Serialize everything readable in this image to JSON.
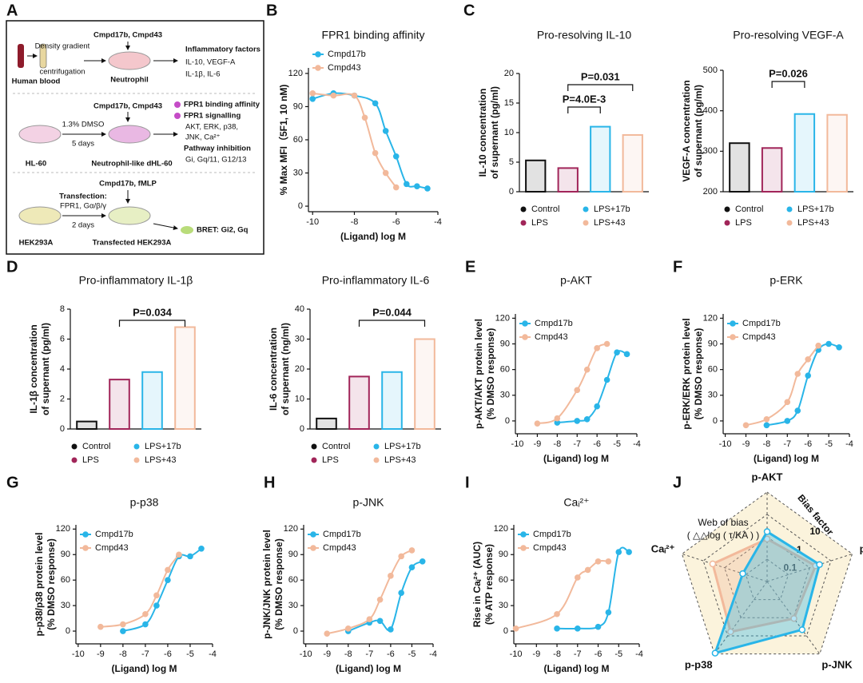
{
  "diagram": {
    "panel": "A",
    "labels": [
      "Cmpd17b, Cmpd43",
      "Density gradient",
      "centrifugation",
      "Human blood",
      "Neutrophil",
      "Inflammatory factors",
      "IL-10, VEGF-A",
      "IL-1β, IL-6",
      "Cmpd17b, Cmpd43",
      "1.3% DMSO",
      "5 days",
      "FPR1 binding affinity",
      "FPR1 signalling",
      "AKT, ERK, p38,",
      "JNK, Ca²⁺",
      "Pathway inhibition",
      "Gi, Gq/11, G12/13",
      "HL-60",
      "Neutrophil-like dHL-60",
      "Cmpd17b, fMLP",
      "Transfection:",
      "FPR1, Gα/β/γ",
      "2 days",
      "BRET: Gi2, Gq",
      "HEK293A",
      "Transfected HEK293A"
    ]
  },
  "chart_data": [
    {
      "type": "line",
      "panel": "B",
      "title": "FPR1 binding affinity",
      "xlabel": "(Ligand) log M",
      "ylabel": [
        "% Max MFI（5F1, 10 nM)"
      ],
      "xlim": [
        -10.2,
        -4
      ],
      "xticks": [
        -10,
        -8,
        -6,
        -4
      ],
      "ylim": [
        -5,
        125
      ],
      "yticks": [
        0,
        30,
        60,
        90,
        120
      ],
      "legend": "top",
      "series": [
        {
          "name": "Cmpd17b",
          "color": "#29b5e8",
          "x": [
            -10,
            -9,
            -8,
            -7,
            -6.5,
            -6,
            -5.5,
            -5,
            -4.5
          ],
          "values": [
            97,
            102,
            100,
            93,
            68,
            45,
            20,
            18,
            16
          ]
        },
        {
          "name": "Cmpd43",
          "color": "#f2b99b",
          "x": [
            -10,
            -9,
            -8,
            -7.5,
            -7,
            -6.5,
            -6
          ],
          "values": [
            102,
            100,
            100,
            80,
            48,
            30,
            17
          ]
        }
      ]
    },
    {
      "type": "bar",
      "panel": "C",
      "title": "Pro-resolving IL-10",
      "ylabel": [
        "IL-10 concentration",
        "of supernant (pg/ml)"
      ],
      "categories": [
        "Control",
        "LPS",
        "LPS+17b",
        "LPS+43"
      ],
      "colors": [
        "#111111",
        "#a12559",
        "#29b5e8",
        "#f2b99b"
      ],
      "values": [
        5.3,
        4.0,
        11.0,
        9.6
      ],
      "ylim": [
        0,
        20
      ],
      "yticks": [
        0,
        5,
        10,
        15,
        20
      ],
      "annotations": [
        {
          "text": "P=4.0E-3",
          "between": [
            "LPS",
            "LPS+17b"
          ]
        },
        {
          "text": "P=0.031",
          "between": [
            "LPS",
            "LPS+43"
          ]
        }
      ]
    },
    {
      "type": "bar",
      "title": "Pro-resolving VEGF-A",
      "ylabel": [
        "VEGF-A concentration",
        "of supernant (pg/ml)"
      ],
      "categories": [
        "Control",
        "LPS",
        "LPS+17b",
        "LPS+43"
      ],
      "colors": [
        "#111111",
        "#a12559",
        "#29b5e8",
        "#f2b99b"
      ],
      "values": [
        320,
        308,
        392,
        390
      ],
      "ylim": [
        200,
        500
      ],
      "yticks": [
        200,
        300,
        400,
        500
      ],
      "annotations": [
        {
          "text": "P=0.026",
          "between": [
            "LPS",
            "LPS+17b"
          ]
        }
      ]
    },
    {
      "type": "bar",
      "panel": "D",
      "title": "Pro-inflammatory IL-1β",
      "ylabel": [
        "IL-1β concentration",
        "of supernant (pg/ml)"
      ],
      "categories": [
        "Control",
        "LPS",
        "LPS+17b",
        "LPS+43"
      ],
      "colors": [
        "#111111",
        "#a12559",
        "#29b5e8",
        "#f2b99b"
      ],
      "values": [
        0.5,
        3.3,
        3.8,
        6.8
      ],
      "ylim": [
        0,
        8
      ],
      "yticks": [
        0,
        2,
        4,
        6,
        8
      ],
      "annotations": [
        {
          "text": "P=0.034",
          "between": [
            "LPS",
            "LPS+43"
          ]
        }
      ]
    },
    {
      "type": "bar",
      "title": "Pro-inflammatory IL-6",
      "ylabel": [
        "IL-6 concentration",
        "of supernant (ng/ml)"
      ],
      "categories": [
        "Control",
        "LPS",
        "LPS+17b",
        "LPS+43"
      ],
      "colors": [
        "#111111",
        "#a12559",
        "#29b5e8",
        "#f2b99b"
      ],
      "values": [
        3.5,
        17.5,
        19,
        30
      ],
      "ylim": [
        0,
        40
      ],
      "yticks": [
        0,
        10,
        20,
        30,
        40
      ],
      "annotations": [
        {
          "text": "P=0.044",
          "between": [
            "LPS",
            "LPS+43"
          ]
        }
      ]
    },
    {
      "type": "line",
      "panel": "E",
      "title": "p-AKT",
      "xlabel": "(Ligand) log M",
      "ylabel": [
        "p-AKT/AKT protein level",
        "(% DMSO response)"
      ],
      "xlim": [
        -10.1,
        -4
      ],
      "xticks": [
        -10,
        -9,
        -8,
        -7,
        -6,
        -5,
        -4
      ],
      "ylim": [
        -15,
        125
      ],
      "yticks": [
        0,
        30,
        60,
        90,
        120
      ],
      "legend": "upper left",
      "series": [
        {
          "name": "Cmpd17b",
          "color": "#29b5e8",
          "x": [
            -8,
            -7,
            -6.5,
            -6,
            -5.5,
            -5,
            -4.5
          ],
          "values": [
            -2,
            0,
            2,
            17,
            48,
            80,
            78
          ]
        },
        {
          "name": "Cmpd43",
          "color": "#f2b99b",
          "x": [
            -9,
            -8,
            -7,
            -6.5,
            -6,
            -5.5
          ],
          "values": [
            -3,
            3,
            36,
            60,
            85,
            90
          ]
        }
      ]
    },
    {
      "type": "line",
      "panel": "F",
      "title": "p-ERK",
      "xlabel": "(Ligand) log M",
      "ylabel": [
        "p-ERK/ERK protein level",
        "(% DMSO response)"
      ],
      "xlim": [
        -10.1,
        -4
      ],
      "xticks": [
        -10,
        -9,
        -8,
        -7,
        -6,
        -5,
        -4
      ],
      "ylim": [
        -15,
        125
      ],
      "yticks": [
        0,
        30,
        60,
        90,
        120
      ],
      "legend": "upper left",
      "series": [
        {
          "name": "Cmpd17b",
          "color": "#29b5e8",
          "x": [
            -8,
            -7,
            -6.5,
            -6,
            -5.5,
            -5,
            -4.5
          ],
          "values": [
            -5,
            0,
            12,
            53,
            83,
            90,
            86
          ]
        },
        {
          "name": "Cmpd43",
          "color": "#f2b99b",
          "x": [
            -9,
            -8,
            -7,
            -6.5,
            -6,
            -5.5
          ],
          "values": [
            -5,
            2,
            22,
            55,
            72,
            88
          ]
        }
      ]
    },
    {
      "type": "line",
      "panel": "G",
      "title": "p-p38",
      "xlabel": "(Ligand) log M",
      "ylabel": [
        "p-p38/p38 protein level",
        "(% DMSO response)"
      ],
      "xlim": [
        -10.1,
        -4
      ],
      "xticks": [
        -10,
        -9,
        -8,
        -7,
        -6,
        -5,
        -4
      ],
      "ylim": [
        -15,
        125
      ],
      "yticks": [
        0,
        30,
        60,
        90,
        120
      ],
      "legend": "upper left",
      "series": [
        {
          "name": "Cmpd17b",
          "color": "#29b5e8",
          "x": [
            -8,
            -7,
            -6.5,
            -6,
            -5.5,
            -5,
            -4.5
          ],
          "values": [
            0,
            8,
            30,
            60,
            88,
            88,
            97
          ]
        },
        {
          "name": "Cmpd43",
          "color": "#f2b99b",
          "x": [
            -9,
            -8,
            -7,
            -6.5,
            -6,
            -5.5
          ],
          "values": [
            5,
            8,
            20,
            42,
            72,
            90
          ]
        }
      ]
    },
    {
      "type": "line",
      "panel": "H",
      "title": "p-JNK",
      "xlabel": "(Ligand) log M",
      "ylabel": [
        "p-JNK/JNK protein level",
        "(% DMSO response)"
      ],
      "xlim": [
        -10.1,
        -4
      ],
      "xticks": [
        -10,
        -9,
        -8,
        -7,
        -6,
        -5,
        -4
      ],
      "ylim": [
        -15,
        125
      ],
      "yticks": [
        0,
        30,
        60,
        90,
        120
      ],
      "legend": "upper left",
      "series": [
        {
          "name": "Cmpd17b",
          "color": "#29b5e8",
          "x": [
            -8,
            -7,
            -6.5,
            -6,
            -5.5,
            -5,
            -4.5
          ],
          "values": [
            0,
            10,
            12,
            2,
            45,
            75,
            82
          ]
        },
        {
          "name": "Cmpd43",
          "color": "#f2b99b",
          "x": [
            -9,
            -8,
            -7,
            -6.5,
            -6,
            -5.5,
            -5
          ],
          "values": [
            -3,
            3,
            14,
            37,
            65,
            88,
            95
          ]
        }
      ]
    },
    {
      "type": "line",
      "panel": "I",
      "title": "Caᵢ²⁺",
      "xlabel": "(Ligand) log M",
      "ylabel": [
        "Rise in Caᵢ²⁺ (AUC)",
        "(% ATP response)"
      ],
      "xlim": [
        -10.1,
        -4
      ],
      "xticks": [
        -10,
        -9,
        -8,
        -7,
        -6,
        -5,
        -4
      ],
      "ylim": [
        -15,
        125
      ],
      "yticks": [
        0,
        30,
        60,
        90,
        120
      ],
      "legend": "upper left",
      "series": [
        {
          "name": "Cmpd17b",
          "color": "#29b5e8",
          "x": [
            -8,
            -7,
            -6,
            -5.5,
            -5,
            -4.5
          ],
          "values": [
            3,
            3,
            5,
            22,
            93,
            93
          ]
        },
        {
          "name": "Cmpd43",
          "color": "#f2b99b",
          "x": [
            -10,
            -8,
            -7,
            -6.5,
            -6,
            -5.5
          ],
          "values": [
            3,
            20,
            63,
            72,
            82,
            82
          ]
        }
      ]
    },
    {
      "type": "radar",
      "panel": "J",
      "title": [
        "Web of bias",
        "( △△log ( τ/KA ) )"
      ],
      "rlabel": "Bias factor",
      "axes": [
        "p-AKT",
        "p-ERK",
        "p-JNK",
        "p-p38",
        "Caᵢ²⁺"
      ],
      "log": true,
      "rlim": [
        0.01,
        100
      ],
      "rticks": [
        0.1,
        1,
        10
      ],
      "series": [
        {
          "color": "#29b5e8",
          "values": [
            1.7,
            2.9,
            4.6,
            90,
            0.14
          ]
        },
        {
          "color": "#f2b99b",
          "values": [
            0.8,
            1.9,
            1.1,
            6,
            3.6
          ]
        }
      ]
    }
  ]
}
